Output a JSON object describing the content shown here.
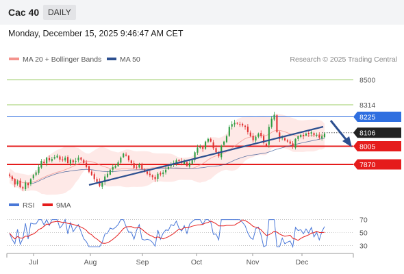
{
  "header": {
    "symbol": "Cac 40",
    "period": "DAILY"
  },
  "datetime": "Monday, December 15, 2025 9:46:47 AM CET",
  "colors": {
    "bollinger": "#f4938d",
    "ma50": "#2c4f8f",
    "candle_up": "#2f9e44",
    "candle_down": "#e03131",
    "resistance_green": "#9ccc65",
    "pivot_blue": "#2f6fe0",
    "support_red": "#e51c1c",
    "last_price": "#222222",
    "rsi": "#4a78d8",
    "rsi_ma": "#e51c1c",
    "trendline": "#2c4f8f"
  },
  "chart_data": [
    {
      "type": "candlestick",
      "legend": [
        {
          "label": "MA 20 + Bollinger Bands",
          "color": "#f4938d"
        },
        {
          "label": "MA 50",
          "color": "#2c4f8f"
        }
      ],
      "credit": "Research © 2025 Trading Central",
      "x_ticks": [
        "Jul",
        "Aug",
        "Sep",
        "Oct",
        "Nov",
        "Dec"
      ],
      "y_range": [
        7640,
        8600
      ],
      "levels": [
        {
          "value": 8500,
          "label": "8500",
          "style": "thin-green"
        },
        {
          "value": 8314,
          "label": "8314",
          "style": "thin-green"
        },
        {
          "value": 8225,
          "label": "8225",
          "style": "blue-box"
        },
        {
          "value": 8106,
          "label": "8106",
          "style": "dark-box"
        },
        {
          "value": 8005,
          "label": "8005",
          "style": "red-box"
        },
        {
          "value": 7870,
          "label": "7870",
          "style": "red-box"
        }
      ],
      "approx_closes": [
        7785,
        7760,
        7720,
        7745,
        7700,
        7690,
        7735,
        7715,
        7760,
        7790,
        7810,
        7850,
        7895,
        7880,
        7920,
        7900,
        7910,
        7925,
        7935,
        7905,
        7900,
        7920,
        7880,
        7905,
        7885,
        7895,
        7920,
        7905,
        7880,
        7850,
        7815,
        7790,
        7760,
        7740,
        7710,
        7735,
        7780,
        7800,
        7830,
        7850,
        7860,
        7885,
        7920,
        7950,
        7935,
        7900,
        7880,
        7845,
        7850,
        7870,
        7835,
        7815,
        7800,
        7790,
        7775,
        7760,
        7800,
        7795,
        7810,
        7830,
        7850,
        7870,
        7880,
        7900,
        7895,
        7880,
        7890,
        7860,
        7880,
        7900,
        7960,
        7995,
        8000,
        7985,
        8040,
        8060,
        8040,
        7990,
        7960,
        7930,
        8010,
        8040,
        8080,
        8150,
        8170,
        8180,
        8175,
        8165,
        8160,
        8150,
        8110,
        8080,
        8050,
        8075,
        8100,
        8080,
        8030,
        8010,
        8150,
        8210,
        8240,
        8110,
        8060,
        8070,
        8050,
        8040,
        8025,
        8000,
        8060,
        8080,
        8090,
        8080,
        8100,
        8095,
        8110,
        8090,
        8090,
        8070,
        8080,
        8100
      ]
    },
    {
      "type": "line",
      "legend": [
        {
          "label": "RSI",
          "color": "#4a78d8"
        },
        {
          "label": "9MA",
          "color": "#e51c1c"
        }
      ],
      "y_ticks": [
        70,
        50,
        30
      ],
      "y_range": [
        22,
        78
      ]
    }
  ]
}
